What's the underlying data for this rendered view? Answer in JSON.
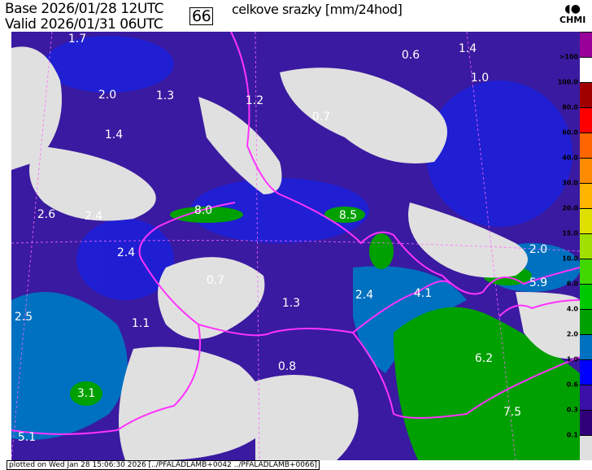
{
  "header": {
    "base_label": "Base",
    "base_time": "2026/01/28 12UTC",
    "valid_label": "Valid",
    "valid_time": "2026/01/31 06UTC",
    "forecast_hour": "66",
    "title": "celkove srazky [mm/24hod]",
    "logo": "CHMI"
  },
  "map": {
    "background_color": "#3a1aa0",
    "border_color": "#ff33ff",
    "value_labels": [
      {
        "value": "1.7"
      },
      {
        "value": "0.6"
      },
      {
        "value": "1.4"
      },
      {
        "value": "1.0"
      },
      {
        "value": "2.0"
      },
      {
        "value": "1.3"
      },
      {
        "value": "1.2"
      },
      {
        "value": "0.7"
      },
      {
        "value": "1.4"
      },
      {
        "value": "2.6"
      },
      {
        "value": "2.4"
      },
      {
        "value": "8.0"
      },
      {
        "value": "8.5"
      },
      {
        "value": "2.0"
      },
      {
        "value": "2.4"
      },
      {
        "value": "0.7"
      },
      {
        "value": "1.3"
      },
      {
        "value": "2.4"
      },
      {
        "value": "4.1"
      },
      {
        "value": "5.9"
      },
      {
        "value": "1.1"
      },
      {
        "value": "2.5"
      },
      {
        "value": "0.8"
      },
      {
        "value": "6.2"
      },
      {
        "value": "3.1"
      },
      {
        "value": "7.5"
      },
      {
        "value": "5.1"
      }
    ]
  },
  "colorbar": {
    "labels": [
      ">100",
      "100.0",
      "80.0",
      "60.0",
      "40.0",
      "30.0",
      "20.0",
      "15.0",
      "10.0",
      "6.0",
      "4.0",
      "2.0",
      "1.0",
      "0.6",
      "0.3",
      "0.1"
    ],
    "colors": [
      "#990099",
      "#ffffff",
      "#a00000",
      "#ff0000",
      "#ff6600",
      "#ff8c00",
      "#ffb400",
      "#e0e000",
      "#a0e000",
      "#40d800",
      "#00c800",
      "#00a000",
      "#0070c0",
      "#0000ff",
      "#3a10a8",
      "#30007a",
      "#e0e0e0"
    ]
  },
  "footer": "plotted on Wed Jan 28 15:06:30 2026 [../PFALADLAMB+0042 ../PFALADLAMB+0066]"
}
